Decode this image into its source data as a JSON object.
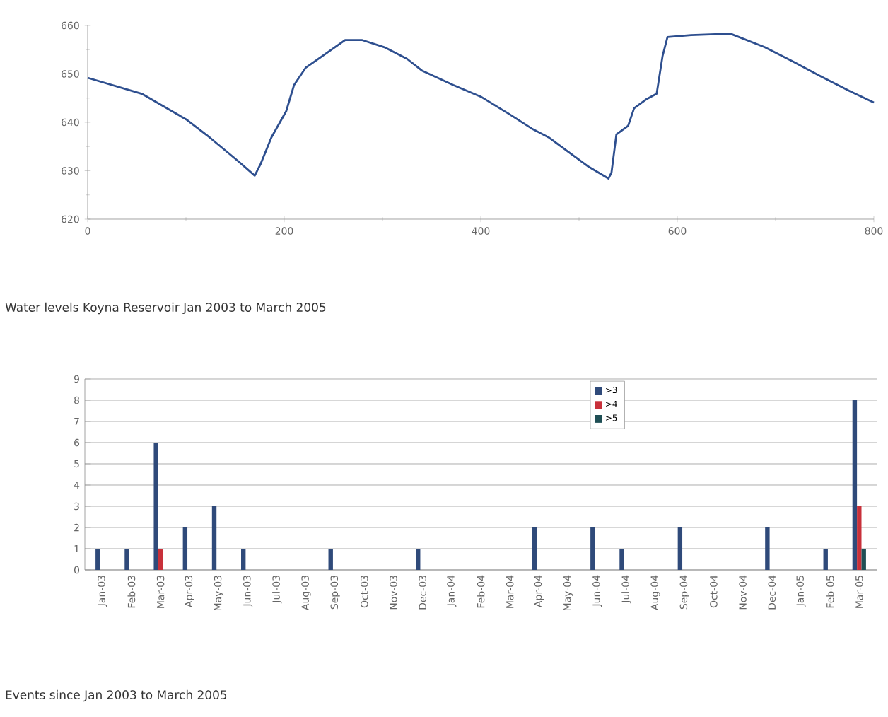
{
  "chart_data": [
    {
      "type": "line",
      "title": "Water levels Koyna Reservoir Jan 2003 to March 2005",
      "xlim": [
        0,
        800
      ],
      "ylim": [
        620,
        660
      ],
      "xticks": [
        0,
        200,
        400,
        600,
        800
      ],
      "yticks": [
        620,
        630,
        640,
        650,
        660
      ],
      "grid": false,
      "legend": false,
      "series": [
        {
          "color": "#2e4f8f",
          "x": [
            0,
            55,
            101,
            124,
            153,
            170,
            176,
            187,
            202,
            210,
            222,
            239,
            262,
            279,
            302,
            325,
            340,
            372,
            400,
            429,
            452,
            469,
            487,
            510,
            530,
            533,
            538,
            550,
            556,
            568,
            579,
            585,
            590,
            614,
            654,
            689,
            718,
            746,
            775,
            800
          ],
          "values": [
            649.2,
            645.9,
            640.5,
            636.9,
            632,
            629,
            631.4,
            636.9,
            642.3,
            647.7,
            651.3,
            653.7,
            657,
            657,
            655.5,
            653.1,
            650.7,
            647.7,
            645.3,
            641.7,
            638.7,
            636.9,
            634.2,
            630.8,
            628.4,
            629.6,
            637.5,
            639.3,
            642.9,
            644.7,
            645.9,
            653.7,
            657.6,
            658,
            658.3,
            655.5,
            652.5,
            649.5,
            646.5,
            644.1
          ]
        }
      ]
    },
    {
      "type": "bar",
      "title": "Events since Jan 2003 to March 2005",
      "ylim": [
        0,
        9
      ],
      "yticks": [
        0,
        1,
        2,
        3,
        4,
        5,
        6,
        7,
        8,
        9
      ],
      "grid": "y",
      "legend": "top",
      "categories": [
        "Jan-03",
        "Feb-03",
        "Mar-03",
        "Apr-03",
        "May-03",
        "Jun-03",
        "Jul-03",
        "Aug-03",
        "Sep-03",
        "Oct-03",
        "Nov-03",
        "Dec-03",
        "Jan-04",
        "Feb-04",
        "Mar-04",
        "Apr-04",
        "May-04",
        "Jun-04",
        "Jul-04",
        "Aug-04",
        "Sep-04",
        "Oct-04",
        "Nov-04",
        "Dec-04",
        "Jan-05",
        "Feb-05",
        "Mar-05"
      ],
      "series": [
        {
          "name": ">3",
          "color": "#2f4a7a",
          "values": [
            1,
            1,
            6,
            2,
            3,
            1,
            0,
            0,
            1,
            0,
            0,
            1,
            0,
            0,
            0,
            2,
            0,
            2,
            1,
            0,
            2,
            0,
            0,
            2,
            0,
            1,
            8
          ]
        },
        {
          "name": ">4",
          "color": "#c8303a",
          "values": [
            0,
            0,
            1,
            0,
            0,
            0,
            0,
            0,
            0,
            0,
            0,
            0,
            0,
            0,
            0,
            0,
            0,
            0,
            0,
            0,
            0,
            0,
            0,
            0,
            0,
            0,
            3
          ]
        },
        {
          "name": ">5",
          "color": "#1f4f55",
          "values": [
            0,
            0,
            0,
            0,
            0,
            0,
            0,
            0,
            0,
            0,
            0,
            0,
            0,
            0,
            0,
            0,
            0,
            0,
            0,
            0,
            0,
            0,
            0,
            0,
            0,
            0,
            1
          ]
        }
      ]
    }
  ]
}
